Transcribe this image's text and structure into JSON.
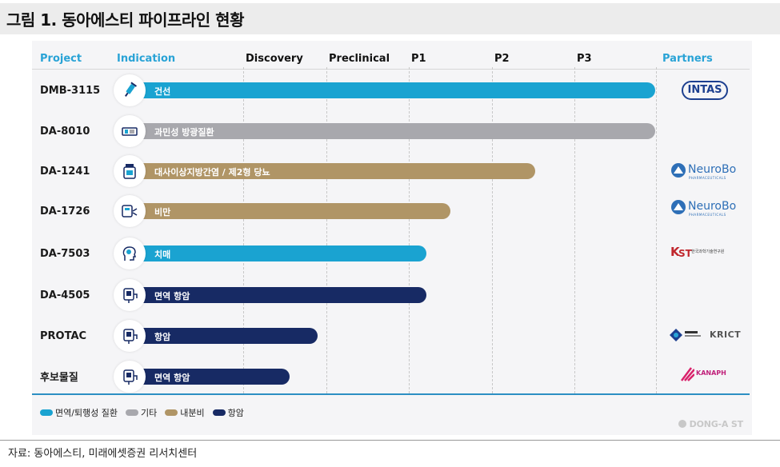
{
  "title": "그림 1. 동아에스티 파이프라인 현황",
  "source": "자료: 동아에스티, 미래에셋증권 리서치센터",
  "headers": {
    "project": "Project",
    "indication": "Indication",
    "discovery": "Discovery",
    "preclinical": "Preclinical",
    "p1": "P1",
    "p2": "P2",
    "p3": "P3",
    "partners": "Partners"
  },
  "colors": {
    "immune": "#1aa3d1",
    "other": "#a8a8ad",
    "endocrine": "#b09566",
    "oncology": "#172a64",
    "accent": "#2c8fc3"
  },
  "rows": [
    {
      "project": "DMB-3115",
      "indication": "건선",
      "category": "면역/퇴행성 질환",
      "icon": "syringe-icon",
      "partner": "INTAS"
    },
    {
      "project": "DA-8010",
      "indication": "과민성 방광질환",
      "category": "기타",
      "icon": "bladder-icon",
      "partner": ""
    },
    {
      "project": "DA-1241",
      "indication": "대사이상지방간염 / 제2형 당뇨",
      "category": "내분비",
      "icon": "medicine-bottle-icon",
      "partner": "NeuroBo"
    },
    {
      "project": "DA-1726",
      "indication": "비만",
      "category": "내분비",
      "icon": "scale-icon",
      "partner": "NeuroBo"
    },
    {
      "project": "DA-7503",
      "indication": "치매",
      "category": "면역/퇴행성 질환",
      "icon": "head-brain-icon",
      "partner": "한국과학기술연구원"
    },
    {
      "project": "DA-4505",
      "indication": "면역 항암",
      "category": "항암",
      "icon": "iv-bag-icon",
      "partner": ""
    },
    {
      "project": "PROTAC",
      "indication": "항암",
      "category": "항암",
      "icon": "iv-bag-icon",
      "partner": "KRICT"
    },
    {
      "project": "후보물질",
      "indication": "면역 항암",
      "category": "항암",
      "icon": "iv-bag-icon",
      "partner": "KANAPH"
    }
  ],
  "partners": {
    "intas": "INTAS",
    "neurobo": "NeuroBo",
    "neurobo_sub": "PHARMACEUTICALS",
    "kist": "한국과학기술연구원",
    "krict": "KRICT",
    "kanaph": "KANAPH"
  },
  "legend": [
    {
      "label": "면역/퇴행성 질환",
      "color": "#1aa3d1"
    },
    {
      "label": "기타",
      "color": "#a8a8ad"
    },
    {
      "label": "내분비",
      "color": "#b09566"
    },
    {
      "label": "항암",
      "color": "#172a64"
    }
  ],
  "watermark": "DONG-A ST"
}
